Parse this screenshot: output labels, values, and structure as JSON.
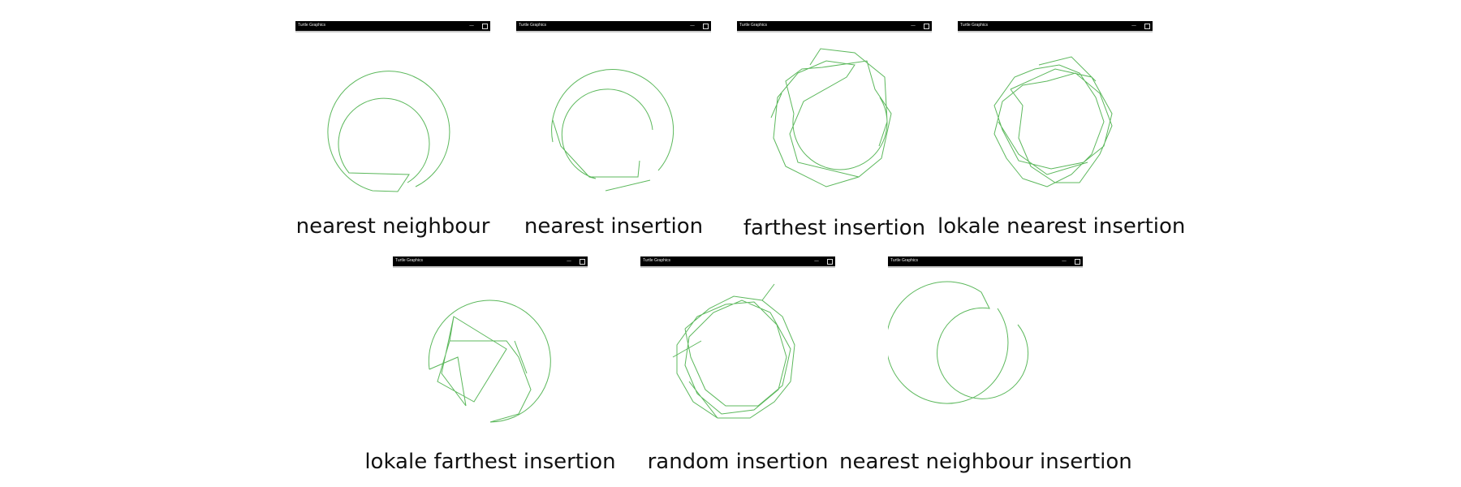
{
  "window_title": "Turtle Graphics",
  "panels": [
    {
      "label": "nearest neighbour",
      "stroke": "#5cb85c"
    },
    {
      "label": "nearest insertion",
      "stroke": "#5cb85c"
    },
    {
      "label": "farthest insertion",
      "stroke": "#5cb85c"
    },
    {
      "label": "lokale nearest insertion",
      "stroke": "#5cb85c"
    },
    {
      "label": "lokale farthest insertion",
      "stroke": "#5cb85c"
    },
    {
      "label": "random insertion",
      "stroke": "#5cb85c"
    },
    {
      "label": "nearest neighbour insertion",
      "stroke": "#5cb85c"
    }
  ]
}
